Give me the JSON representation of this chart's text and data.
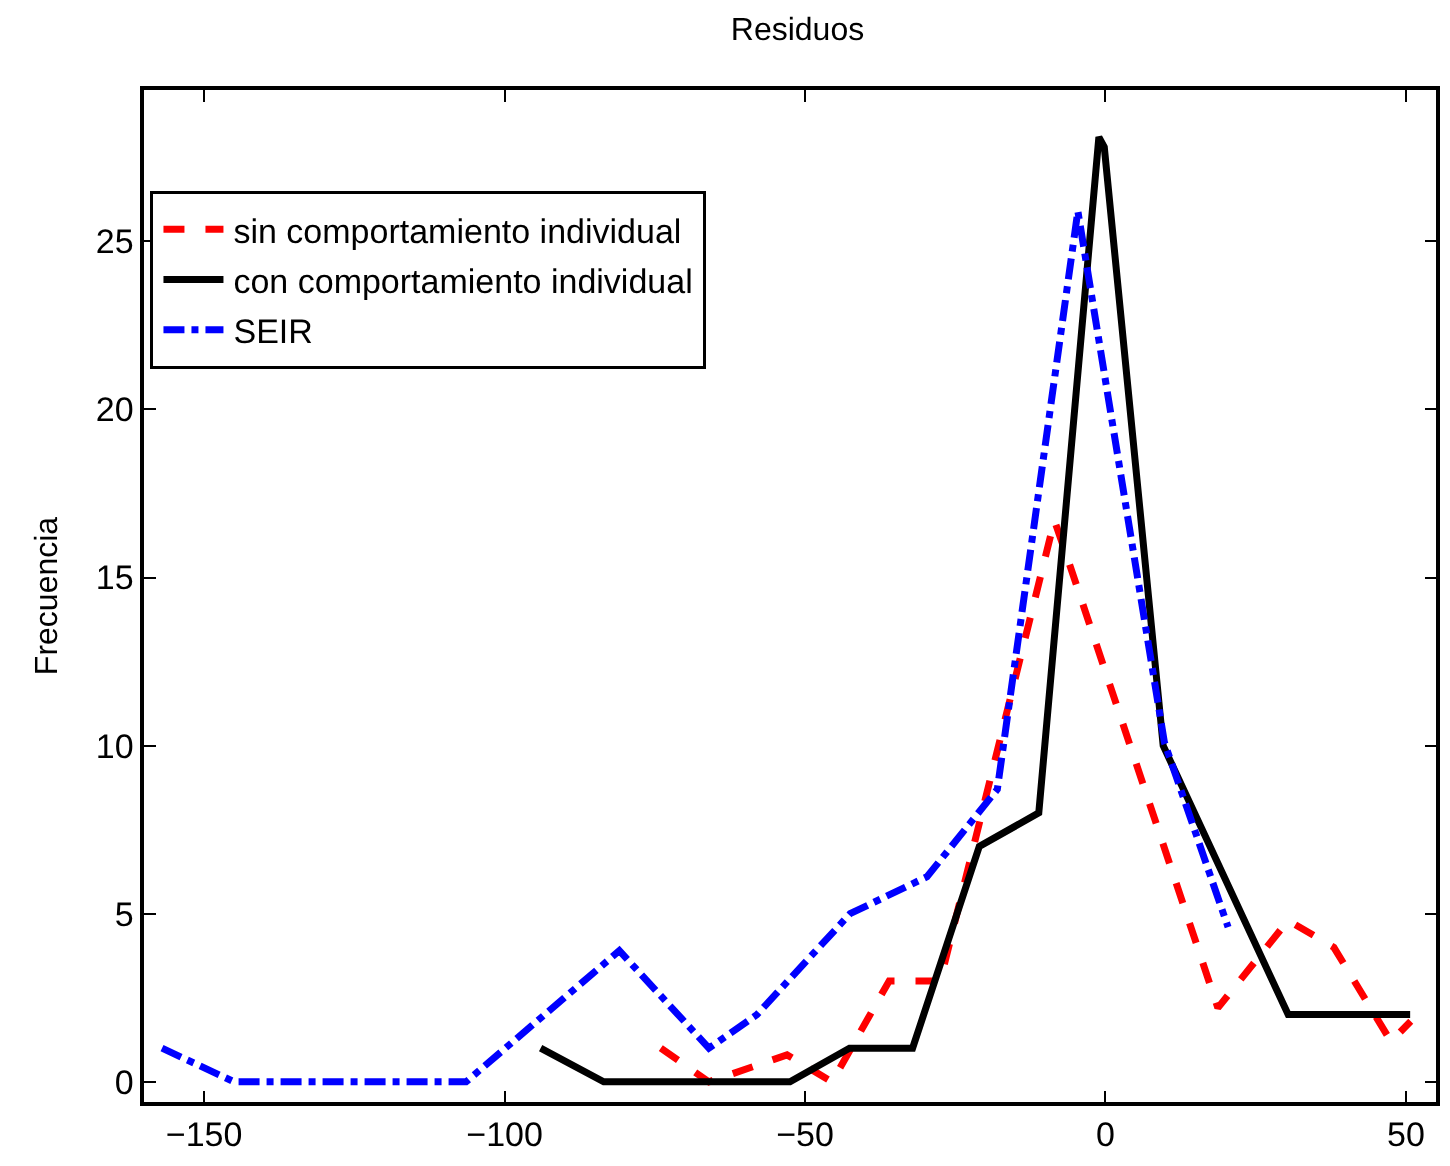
{
  "chart_data": {
    "type": "line",
    "title": "Residuos",
    "ylabel": "Frecuencia",
    "xlim": [
      -160,
      55
    ],
    "ylim": [
      -0.6,
      29.5
    ],
    "xticks": [
      {
        "value": -150,
        "label": "−150"
      },
      {
        "value": -100,
        "label": "−100"
      },
      {
        "value": -50,
        "label": "−50"
      },
      0,
      50
    ],
    "yticks": [
      0,
      5,
      10,
      15,
      20,
      25
    ],
    "legend": "top left",
    "series": [
      {
        "name": "sin comportamiento individual",
        "color": "#ff0000",
        "line_style": "dashed",
        "x": [
          -74,
          -66,
          -53,
          -45.5,
          -36,
          -27.5,
          -8.5,
          -6,
          18.7,
          30.4,
          38,
          47.5,
          50.8
        ],
        "values": [
          1,
          0,
          0.8,
          0,
          3,
          3,
          16.7,
          15.4,
          2.2,
          4.8,
          4,
          1.2,
          1.8
        ]
      },
      {
        "name": "con comportamiento individual",
        "color": "#000000",
        "line_style": "solid",
        "x": [
          -94,
          -83.5,
          -52.5,
          -42.6,
          -32.1,
          -21,
          -11.1,
          -1.1,
          -0.2,
          9.6,
          30.4,
          50.7
        ],
        "values": [
          1,
          0,
          0,
          1,
          1,
          7,
          8,
          28.1,
          27.8,
          10,
          2,
          2
        ]
      },
      {
        "name": "SEIR",
        "color": "#0000ff",
        "line_style": "dashdot",
        "x": [
          -157,
          -145,
          -106.4,
          -80.9,
          -66,
          -58,
          -42.5,
          -29.7,
          -18,
          -4.6,
          9.8,
          20.4
        ],
        "values": [
          1,
          0,
          0,
          3.9,
          1,
          2,
          5,
          6.1,
          8.7,
          25.9,
          10.1,
          4.6
        ]
      }
    ]
  }
}
